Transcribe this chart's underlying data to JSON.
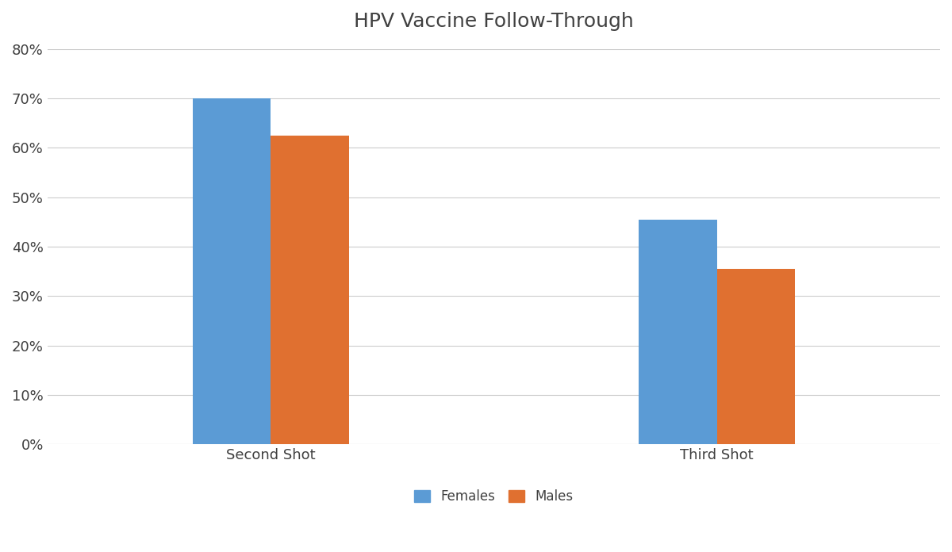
{
  "title": "HPV Vaccine Follow-Through",
  "categories": [
    "Second Shot",
    "Third Shot"
  ],
  "females": [
    0.7,
    0.455
  ],
  "males": [
    0.625,
    0.355
  ],
  "female_color": "#5B9BD5",
  "male_color": "#E07030",
  "ylim": [
    0,
    0.8
  ],
  "yticks": [
    0.0,
    0.1,
    0.2,
    0.3,
    0.4,
    0.5,
    0.6,
    0.7,
    0.8
  ],
  "ytick_labels": [
    "0%",
    "10%",
    "20%",
    "30%",
    "40%",
    "50%",
    "60%",
    "70%",
    "80%"
  ],
  "legend_labels": [
    "Females",
    "Males"
  ],
  "background_color": "#FFFFFF",
  "grid_color": "#CCCCCC",
  "title_color": "#404040",
  "bar_width": 0.35,
  "title_fontsize": 18,
  "tick_fontsize": 13,
  "legend_fontsize": 12
}
